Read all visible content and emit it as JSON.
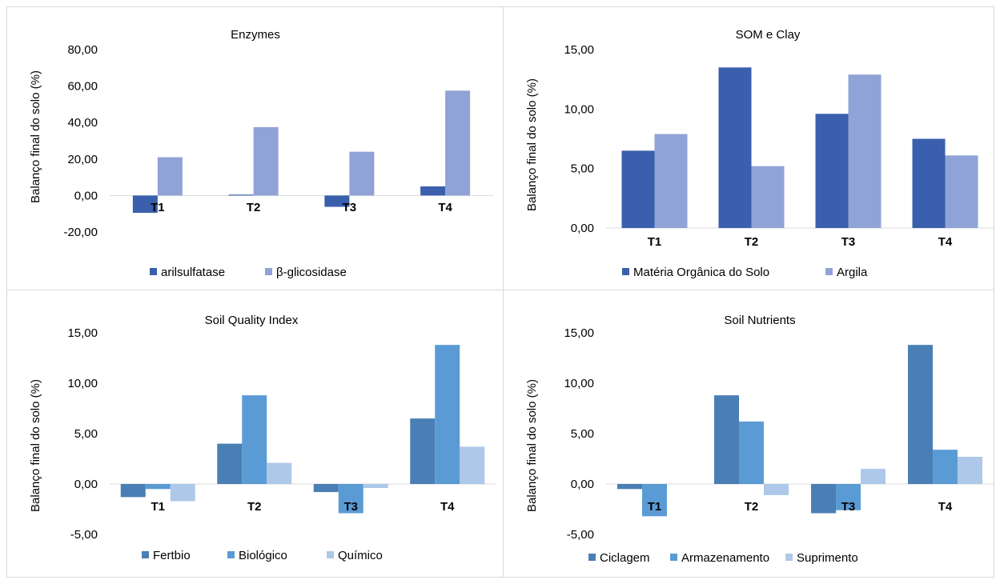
{
  "chart_data": [
    {
      "type": "bar",
      "title": "Enzymes",
      "ylabel": "Balanço final do solo (%)",
      "xlabel": "",
      "categories": [
        "T1",
        "T2",
        "T3",
        "T4"
      ],
      "series": [
        {
          "name": "arilsulfatase",
          "color": "#3a5fac",
          "values": [
            -9.5,
            0.5,
            -6.2,
            5.0
          ]
        },
        {
          "name": "β-glicosidase",
          "color": "#8fa3d6",
          "values": [
            21.0,
            37.5,
            24.0,
            57.5
          ]
        }
      ],
      "ylim": [
        -20,
        80
      ],
      "yticks": [
        80,
        60,
        40,
        20,
        0,
        -20
      ],
      "ytick_labels": [
        "80,00",
        "60,00",
        "40,00",
        "20,00",
        "0,00",
        "-20,00"
      ],
      "legend": "bottom",
      "grid": false
    },
    {
      "type": "bar",
      "title": "SOM e Clay",
      "ylabel": "Balanço final do solo (%)",
      "xlabel": "",
      "categories": [
        "T1",
        "T2",
        "T3",
        "T4"
      ],
      "series": [
        {
          "name": "Matéria Orgânica do Solo",
          "color": "#3a5fac",
          "values": [
            6.5,
            13.5,
            9.6,
            7.5
          ]
        },
        {
          "name": "Argila",
          "color": "#8fa3d6",
          "values": [
            7.9,
            5.2,
            12.9,
            6.1
          ]
        }
      ],
      "ylim": [
        0,
        15
      ],
      "yticks": [
        15,
        10,
        5,
        0
      ],
      "ytick_labels": [
        "15,00",
        "10,00",
        "5,00",
        "0,00"
      ],
      "legend": "bottom",
      "grid": false
    },
    {
      "type": "bar",
      "title": "Soil Quality Index",
      "ylabel": "Balanço final do solo (%)",
      "xlabel": "",
      "categories": [
        "T1",
        "T2",
        "T3",
        "T4"
      ],
      "series": [
        {
          "name": "Fertbio",
          "color": "#4a7fb5",
          "values": [
            -1.3,
            4.0,
            -0.8,
            6.5
          ]
        },
        {
          "name": "Biológico",
          "color": "#5b9bd5",
          "values": [
            -0.5,
            8.8,
            -2.9,
            13.8
          ]
        },
        {
          "name": "Químico",
          "color": "#adc8e8",
          "values": [
            -1.7,
            2.1,
            -0.4,
            3.7
          ]
        }
      ],
      "ylim": [
        -5,
        15
      ],
      "yticks": [
        15,
        10,
        5,
        0,
        -5
      ],
      "ytick_labels": [
        "15,00",
        "10,00",
        "5,00",
        "0,00",
        "-5,00"
      ],
      "legend": "bottom",
      "grid": false
    },
    {
      "type": "bar",
      "title": "Soil Nutrients",
      "ylabel": "Balanço final do solo (%)",
      "xlabel": "",
      "categories": [
        "T1",
        "T2",
        "T3",
        "T4"
      ],
      "series": [
        {
          "name": "Ciclagem",
          "color": "#4a7fb5",
          "values": [
            -0.5,
            8.8,
            -2.9,
            13.8
          ]
        },
        {
          "name": "Armazenamento",
          "color": "#5b9bd5",
          "values": [
            -3.2,
            6.2,
            -2.6,
            3.4
          ]
        },
        {
          "name": "Suprimento",
          "color": "#adc8e8",
          "values": [
            0.0,
            -1.1,
            1.5,
            2.7
          ]
        }
      ],
      "ylim": [
        -5,
        15
      ],
      "yticks": [
        15,
        10,
        5,
        0,
        -5
      ],
      "ytick_labels": [
        "15,00",
        "10,00",
        "5,00",
        "0,00",
        "-5,00"
      ],
      "legend": "bottom",
      "grid": false
    }
  ]
}
